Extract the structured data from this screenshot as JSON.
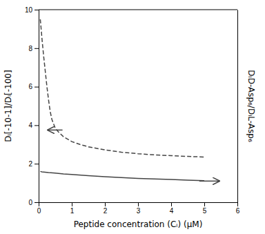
{
  "chart_data": {
    "type": "line",
    "xlabel": "Peptide concentration (Cᵢ) (μM)",
    "ylabel": "Dᵢ[-10-1]/Dᵢ[-100]",
    "y2label": "DᵢD-Asp₆/DᵢL-Asp₆",
    "xlim": [
      0,
      6
    ],
    "ylim": [
      0,
      10
    ],
    "y2lim": [
      0,
      10
    ],
    "xticks": [
      0,
      1,
      2,
      3,
      4,
      5,
      6
    ],
    "yticks": [
      0,
      2,
      4,
      6,
      8,
      10
    ],
    "grid": false,
    "color": "#444444",
    "series": [
      {
        "line_style": "solid",
        "x": [
          0.05,
          0.1,
          0.2,
          0.3,
          0.5,
          0.75,
          1.0,
          1.5,
          2.0,
          2.5,
          3.0,
          3.5,
          4.0,
          4.5,
          5.0
        ],
        "values": [
          1.6,
          1.58,
          1.56,
          1.54,
          1.51,
          1.47,
          1.44,
          1.38,
          1.33,
          1.28,
          1.24,
          1.21,
          1.18,
          1.15,
          1.12
        ]
      },
      {
        "line_style": "dashed",
        "x": [
          0.05,
          0.1,
          0.15,
          0.2,
          0.25,
          0.3,
          0.35,
          0.4,
          0.5,
          0.6,
          0.75,
          1.0,
          1.25,
          1.5,
          2.0,
          2.5,
          3.0,
          3.5,
          4.0,
          4.5,
          5.0
        ],
        "values": [
          9.5,
          8.5,
          7.6,
          6.8,
          6.0,
          5.3,
          4.7,
          4.3,
          3.85,
          3.65,
          3.4,
          3.15,
          3.0,
          2.88,
          2.72,
          2.6,
          2.52,
          2.46,
          2.42,
          2.38,
          2.35
        ]
      }
    ],
    "annotations": [
      {
        "xy": [
          0.28,
          3.75
        ],
        "xytext": [
          0.72,
          3.75
        ]
      },
      {
        "xy": [
          5.45,
          1.1
        ],
        "xytext": [
          4.85,
          1.1
        ]
      }
    ]
  }
}
